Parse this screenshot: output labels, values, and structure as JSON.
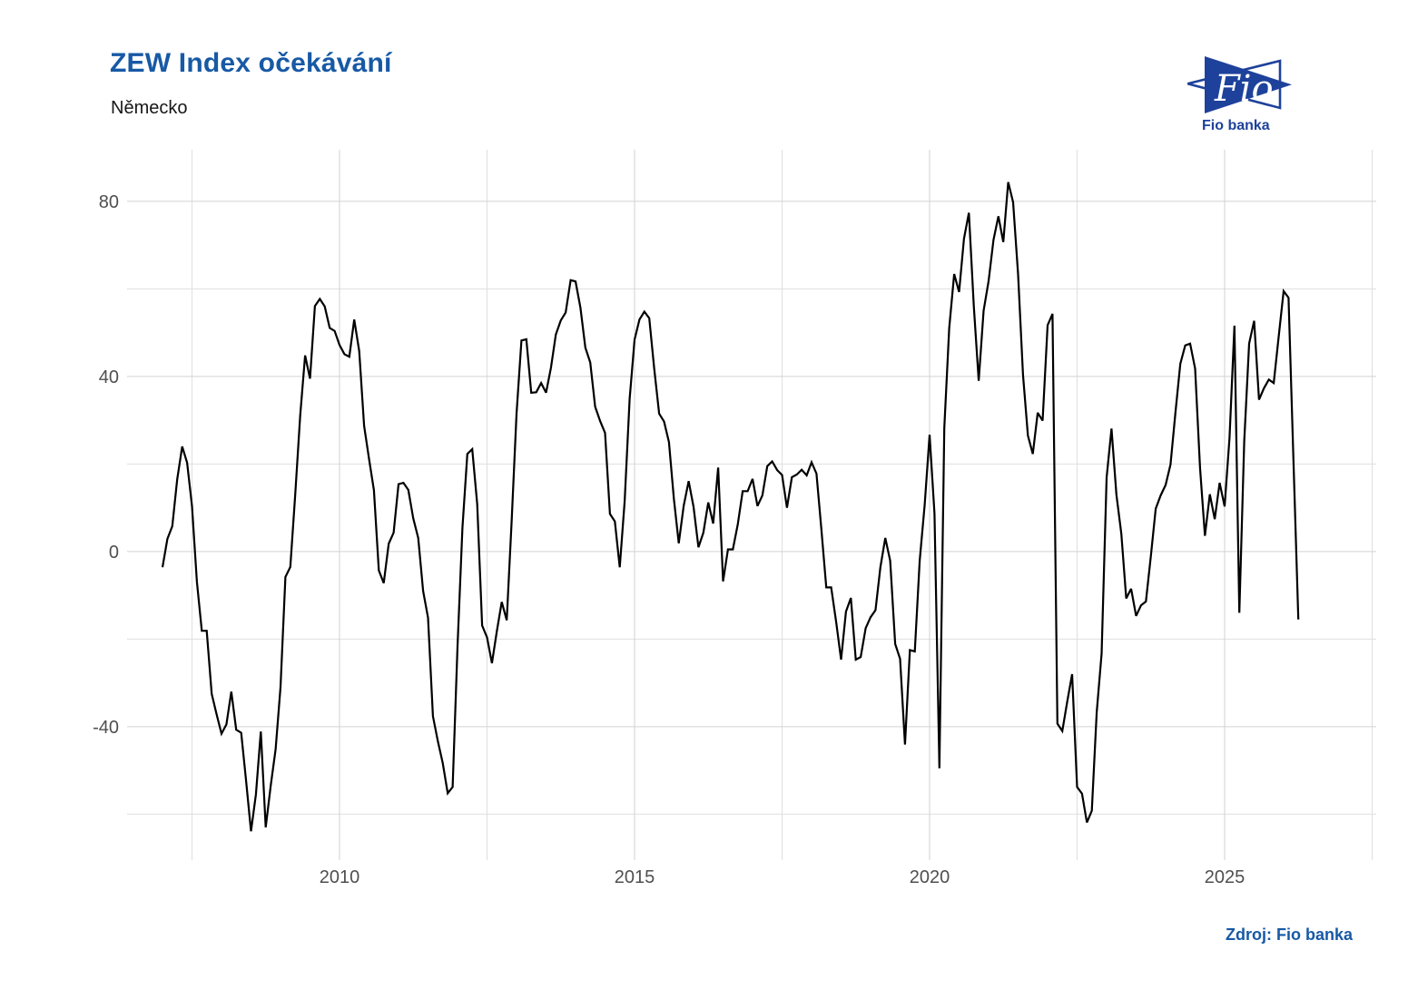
{
  "header": {
    "title": "ZEW Index očekávání",
    "subtitle": "Německo"
  },
  "logo": {
    "mark_text": "Fio",
    "caption": "Fio banka",
    "color": "#1e429b"
  },
  "footer": {
    "source_label": "Zdroj: Fio banka"
  },
  "colors": {
    "accent_blue": "#1759a5",
    "logo_blue": "#1e429b",
    "line": "#000000",
    "grid_major": "#d2d2d2",
    "grid_minor": "#dfdfdf",
    "tick_text": "#4f4f4f",
    "background": "#ffffff"
  },
  "chart_data": {
    "type": "line",
    "title": "ZEW Index očekávání",
    "subtitle": "Německo",
    "grid": true,
    "legend": false,
    "x_start": 2007.0,
    "points_per_year": 12,
    "x_range": [
      2006.4,
      2027.57
    ],
    "y_range": [
      -70.5,
      91.8
    ],
    "x_ticks": [
      2010,
      2015,
      2020,
      2025
    ],
    "x_tick_labels": [
      "2010",
      "2015",
      "2020",
      "2025"
    ],
    "x_minor": [
      2007.5,
      2012.5,
      2017.5,
      2022.5,
      2027.5
    ],
    "y_ticks": [
      80,
      40,
      0,
      -40
    ],
    "y_tick_labels": [
      "80",
      "40",
      "0",
      "-40"
    ],
    "y_minor": [
      60,
      20,
      -20,
      -60
    ],
    "series": [
      {
        "name": "ZEW Index očekávání – Německo",
        "frequency": "monthly",
        "start": "2007-01",
        "values": [
          -3.6,
          2.9,
          5.8,
          16.5,
          24.0,
          20.3,
          10.4,
          -6.9,
          -18.1,
          -18.1,
          -32.5,
          -37.2,
          -41.6,
          -39.5,
          -32.0,
          -40.7,
          -41.4,
          -52.4,
          -63.9,
          -55.5,
          -41.1,
          -63.0,
          -53.5,
          -45.2,
          -31.0,
          -5.8,
          -3.5,
          13.0,
          31.1,
          44.8,
          39.5,
          56.1,
          57.7,
          56.0,
          51.1,
          50.4,
          47.2,
          45.1,
          44.5,
          53.0,
          45.8,
          28.7,
          21.2,
          14.0,
          -4.3,
          -7.2,
          1.8,
          4.3,
          15.4,
          15.7,
          14.1,
          7.6,
          3.1,
          -9.0,
          -15.1,
          -37.6,
          -43.3,
          -48.3,
          -55.2,
          -53.8,
          -21.6,
          5.4,
          22.3,
          23.4,
          10.8,
          -16.9,
          -19.6,
          -25.5,
          -18.2,
          -11.5,
          -15.7,
          6.9,
          31.5,
          48.2,
          48.5,
          36.3,
          36.4,
          38.5,
          36.3,
          42.0,
          49.6,
          52.8,
          54.6,
          62.0,
          61.7,
          55.7,
          46.6,
          43.2,
          33.1,
          29.8,
          27.1,
          8.6,
          6.9,
          -3.6,
          11.5,
          34.9,
          48.4,
          53.0,
          54.8,
          53.3,
          41.9,
          31.5,
          29.7,
          25.0,
          12.1,
          1.9,
          10.4,
          16.1,
          10.2,
          1.0,
          4.3,
          11.2,
          6.4,
          19.2,
          -6.8,
          0.5,
          0.5,
          6.2,
          13.8,
          13.8,
          16.6,
          10.4,
          12.8,
          19.5,
          20.6,
          18.6,
          17.5,
          10.0,
          17.0,
          17.6,
          18.7,
          17.4,
          20.4,
          17.8,
          5.1,
          -8.2,
          -8.2,
          -16.1,
          -24.7,
          -13.7,
          -10.6,
          -24.7,
          -24.1,
          -17.5,
          -15.0,
          -13.4,
          -3.6,
          3.1,
          -2.1,
          -21.1,
          -24.5,
          -44.1,
          -22.5,
          -22.8,
          -2.1,
          10.7,
          26.7,
          8.7,
          -49.5,
          28.2,
          51.0,
          63.4,
          59.3,
          71.5,
          77.4,
          56.1,
          39.0,
          55.0,
          61.8,
          71.2,
          76.6,
          70.7,
          84.4,
          79.8,
          63.3,
          40.4,
          26.5,
          22.3,
          31.7,
          29.9,
          51.7,
          54.3,
          -39.3,
          -41.0,
          -34.3,
          -28.0,
          -53.8,
          -55.3,
          -61.9,
          -59.2,
          -36.7,
          -23.3,
          16.9,
          28.1,
          13.0,
          4.1,
          -10.7,
          -8.5,
          -14.7,
          -12.3,
          -11.4,
          -1.1,
          9.8,
          12.8,
          15.2,
          19.9,
          31.7,
          42.9,
          47.1,
          47.5,
          41.8,
          19.2,
          3.6,
          13.1,
          7.4,
          15.7,
          10.3,
          26.0,
          51.6,
          -14.0,
          25.2,
          47.5,
          52.7,
          34.7,
          37.3,
          39.3,
          38.5,
          49.0,
          59.5,
          58.0,
          21.0,
          -15.5
        ]
      }
    ]
  }
}
